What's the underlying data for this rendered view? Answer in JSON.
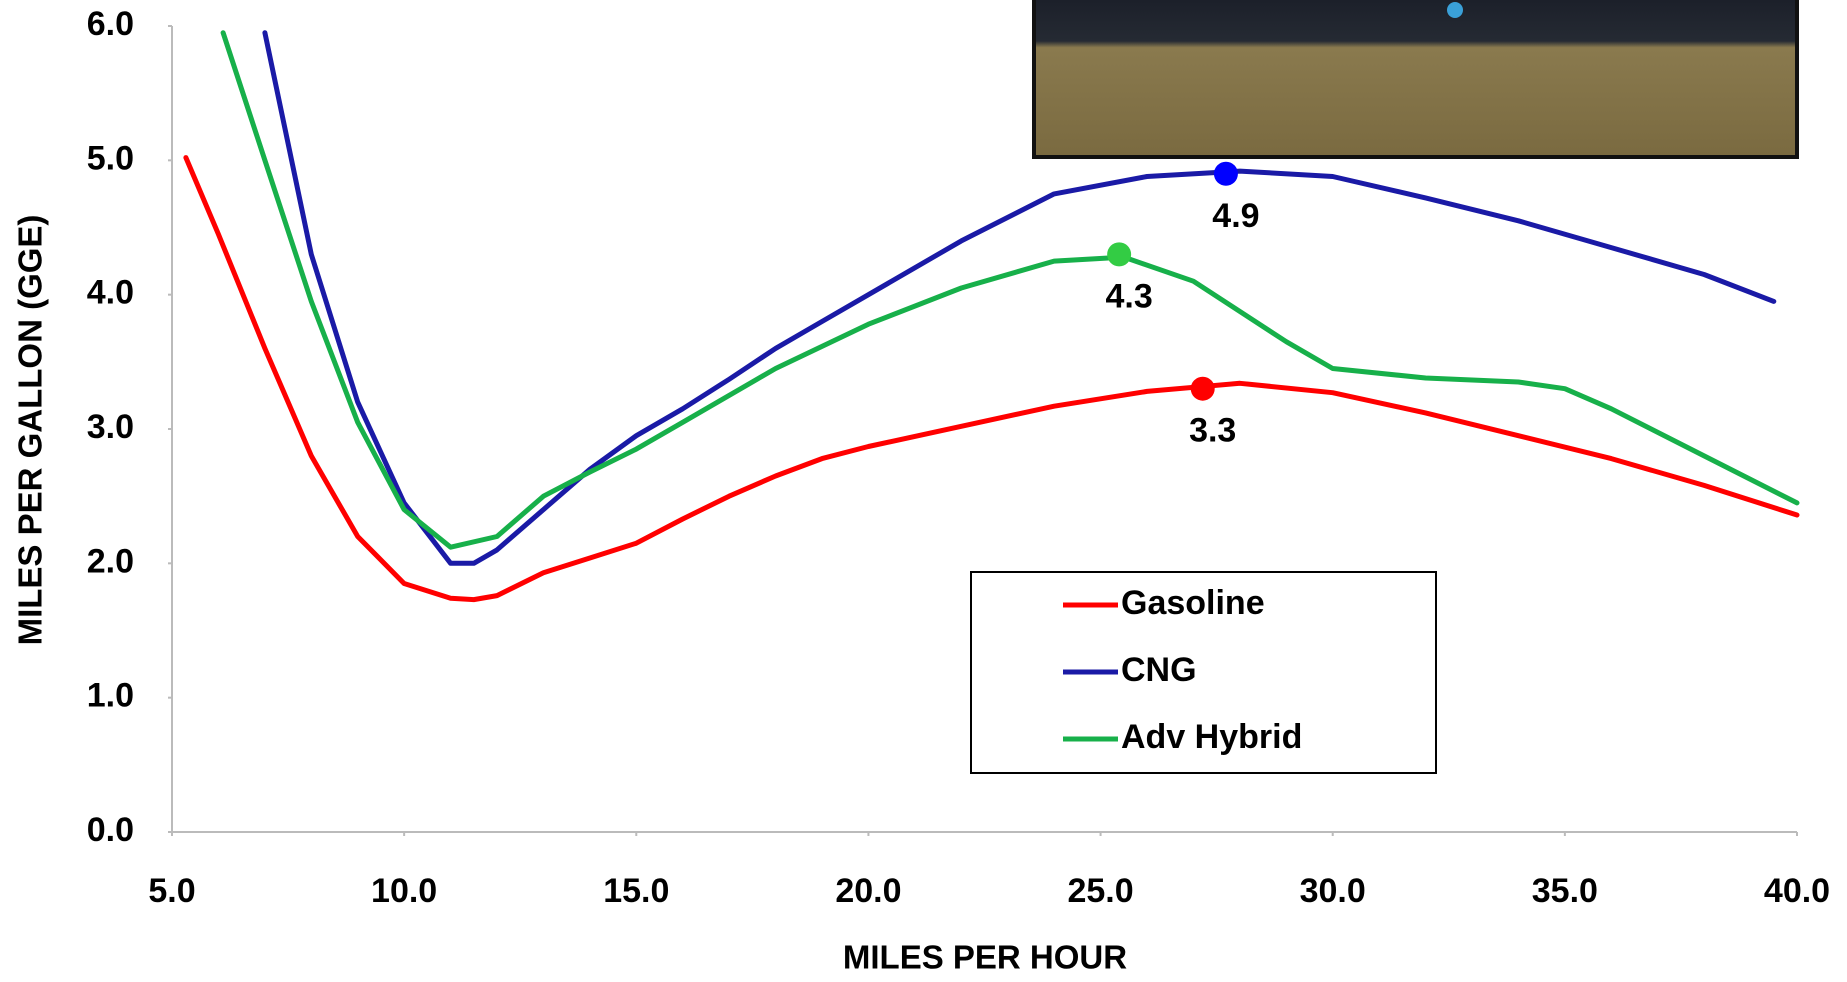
{
  "chart_data": {
    "type": "line",
    "x_label": "MILES PER HOUR",
    "y_label": "MILES PER GALLON (GGE)",
    "xlim": [
      5,
      40
    ],
    "ylim": [
      0,
      6
    ],
    "xticks": [
      {
        "value": 5,
        "label": "5.0"
      },
      {
        "value": 10,
        "label": "10.0"
      },
      {
        "value": 15,
        "label": "15.0"
      },
      {
        "value": 20,
        "label": "20.0"
      },
      {
        "value": 25,
        "label": "25.0"
      },
      {
        "value": 30,
        "label": "30.0"
      },
      {
        "value": 35,
        "label": "35.0"
      },
      {
        "value": 40,
        "label": "40.0"
      }
    ],
    "yticks": [
      {
        "value": 0,
        "label": "0.0"
      },
      {
        "value": 1,
        "label": "1.0"
      },
      {
        "value": 2,
        "label": "2.0"
      },
      {
        "value": 3,
        "label": "3.0"
      },
      {
        "value": 4,
        "label": "4.0"
      },
      {
        "value": 5,
        "label": "5.0"
      },
      {
        "value": 6,
        "label": "6.0"
      }
    ],
    "series": [
      {
        "name": "Gasoline",
        "color": "#ff0000",
        "marker_color": "#ff0000",
        "x": [
          5.3,
          6,
          7,
          8,
          9,
          10,
          11,
          11.5,
          12,
          13,
          14,
          15,
          16,
          17,
          18,
          19,
          20,
          22,
          24,
          26,
          28,
          30,
          32,
          34,
          36,
          38,
          40
        ],
        "values": [
          5.02,
          4.45,
          3.6,
          2.8,
          2.2,
          1.85,
          1.74,
          1.73,
          1.76,
          1.93,
          2.04,
          2.15,
          2.33,
          2.5,
          2.65,
          2.78,
          2.87,
          3.02,
          3.17,
          3.28,
          3.34,
          3.27,
          3.12,
          2.95,
          2.78,
          2.58,
          2.36
        ],
        "peak": {
          "x": 27.2,
          "y": 3.3
        }
      },
      {
        "name": "CNG",
        "color": "#1a1aa6",
        "marker_color": "#0000ff",
        "x": [
          7,
          8,
          9,
          10,
          11,
          11.5,
          12,
          13,
          14,
          15,
          16,
          17,
          18,
          19,
          20,
          22,
          24,
          26,
          28,
          30,
          32,
          34,
          36,
          38,
          39.5
        ],
        "values": [
          5.95,
          4.3,
          3.2,
          2.45,
          2.0,
          2.0,
          2.1,
          2.4,
          2.7,
          2.95,
          3.15,
          3.37,
          3.6,
          3.8,
          4.0,
          4.4,
          4.75,
          4.88,
          4.92,
          4.88,
          4.72,
          4.55,
          4.35,
          4.15,
          3.95
        ],
        "peak": {
          "x": 27.7,
          "y": 4.9
        }
      },
      {
        "name": "Adv Hybrid",
        "color": "#17b04a",
        "marker_color": "#33cc44",
        "x": [
          6.1,
          7,
          8,
          9,
          10,
          11,
          12,
          13,
          14,
          15,
          16,
          18,
          20,
          22,
          24,
          25.5,
          27,
          29,
          30,
          32,
          34,
          35,
          36,
          38,
          40
        ],
        "values": [
          5.95,
          5.0,
          3.95,
          3.05,
          2.4,
          2.12,
          2.2,
          2.5,
          2.68,
          2.85,
          3.05,
          3.45,
          3.78,
          4.05,
          4.25,
          4.28,
          4.1,
          3.65,
          3.45,
          3.38,
          3.35,
          3.3,
          3.15,
          2.8,
          2.45
        ],
        "peak": {
          "x": 25.4,
          "y": 4.3
        }
      }
    ]
  }
}
